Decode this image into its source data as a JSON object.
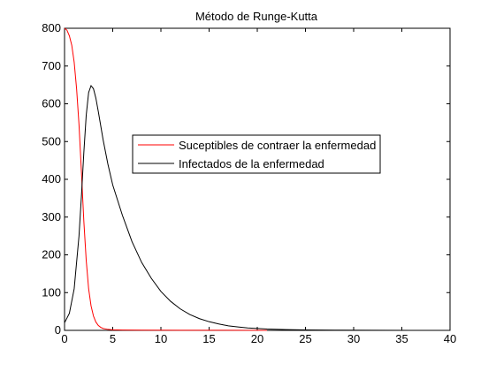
{
  "chart_data": {
    "type": "line",
    "title": "Método de Runge-Kutta",
    "xlabel": "",
    "ylabel": "",
    "xlim": [
      0,
      40
    ],
    "ylim": [
      0,
      800
    ],
    "xticks": [
      0,
      5,
      10,
      15,
      20,
      25,
      30,
      35,
      40
    ],
    "yticks": [
      0,
      100,
      200,
      300,
      400,
      500,
      600,
      700,
      800
    ],
    "xtick_labels": [
      "0",
      "5",
      "10",
      "15",
      "20",
      "25",
      "30",
      "35",
      "40"
    ],
    "ytick_labels": [
      "0",
      "100",
      "200",
      "300",
      "400",
      "500",
      "600",
      "700",
      "800"
    ],
    "grid": false,
    "legend_position": "center",
    "series": [
      {
        "name": "Suceptibles de contraer la enfermedad",
        "color": "#ff0000",
        "points": [
          [
            0,
            800
          ],
          [
            0.25,
            795
          ],
          [
            0.5,
            780
          ],
          [
            0.75,
            755
          ],
          [
            1.0,
            710
          ],
          [
            1.25,
            640
          ],
          [
            1.5,
            545
          ],
          [
            1.75,
            420
          ],
          [
            2.0,
            290
          ],
          [
            2.25,
            185
          ],
          [
            2.5,
            110
          ],
          [
            2.75,
            65
          ],
          [
            3.0,
            38
          ],
          [
            3.25,
            22
          ],
          [
            3.5,
            13
          ],
          [
            3.75,
            8
          ],
          [
            4.0,
            5
          ],
          [
            4.5,
            2.5
          ],
          [
            5.0,
            1.5
          ],
          [
            6.0,
            0.8
          ],
          [
            8.0,
            0.5
          ],
          [
            12.0,
            0.3
          ],
          [
            16.0,
            0.2
          ],
          [
            21.0,
            0.1
          ]
        ]
      },
      {
        "name": "Infectados de la enfermedad",
        "color": "#000000",
        "points": [
          [
            0,
            20
          ],
          [
            0.5,
            45
          ],
          [
            1.0,
            110
          ],
          [
            1.5,
            250
          ],
          [
            1.75,
            355
          ],
          [
            2.0,
            470
          ],
          [
            2.25,
            570
          ],
          [
            2.5,
            630
          ],
          [
            2.75,
            648
          ],
          [
            3.0,
            640
          ],
          [
            3.25,
            615
          ],
          [
            3.5,
            580
          ],
          [
            4.0,
            505
          ],
          [
            4.5,
            440
          ],
          [
            5.0,
            385
          ],
          [
            6.0,
            305
          ],
          [
            7.0,
            235
          ],
          [
            8.0,
            180
          ],
          [
            9.0,
            138
          ],
          [
            10.0,
            103
          ],
          [
            11.0,
            77
          ],
          [
            12.0,
            57
          ],
          [
            13.0,
            42
          ],
          [
            14.0,
            31
          ],
          [
            15.0,
            23
          ],
          [
            16.0,
            17
          ],
          [
            17.0,
            12
          ],
          [
            18.0,
            9
          ],
          [
            19.0,
            6.5
          ],
          [
            20.0,
            5
          ],
          [
            21.0,
            3.5
          ],
          [
            23.0,
            2
          ],
          [
            25.0,
            1.2
          ],
          [
            28.0,
            0.6
          ],
          [
            32.0,
            0.3
          ],
          [
            36.0,
            0.15
          ],
          [
            40.0,
            0.08
          ]
        ]
      }
    ]
  }
}
